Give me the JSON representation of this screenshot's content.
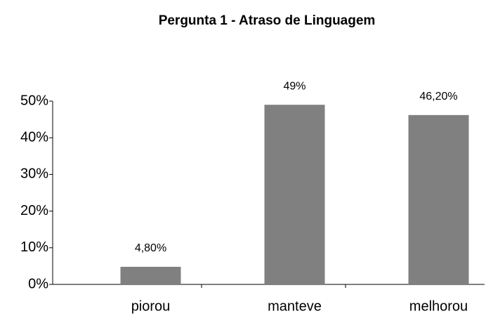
{
  "chart_data": {
    "type": "bar",
    "title": "Pergunta 1 - Atraso de Linguagem",
    "categories": [
      "piorou",
      "manteve",
      "melhorou"
    ],
    "values": [
      4.8,
      49,
      46.2
    ],
    "value_labels": [
      "4,80%",
      "49%",
      "46,20%"
    ],
    "color": "#808080",
    "ylim": [
      0,
      50
    ],
    "yticks": [
      {
        "value": 0,
        "label": "0%"
      },
      {
        "value": 10,
        "label": "10%"
      },
      {
        "value": 20,
        "label": "20%"
      },
      {
        "value": 30,
        "label": "30%"
      },
      {
        "value": 40,
        "label": "40%"
      },
      {
        "value": 50,
        "label": "50%"
      }
    ],
    "grid": false
  }
}
